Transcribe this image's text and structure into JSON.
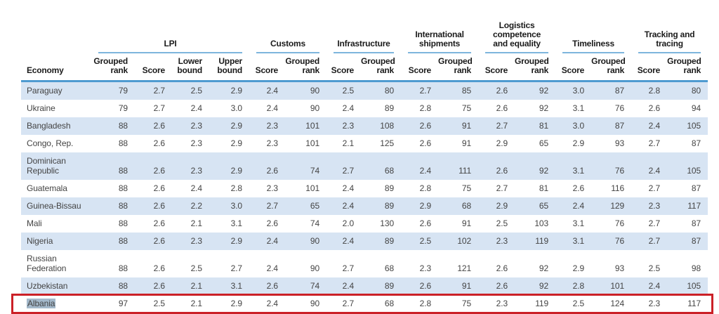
{
  "colors": {
    "page_background": "#ffffff",
    "row_shade": "#d7e4f3",
    "group_underline": "#7db5dd",
    "header_rule": "#4f9bd1",
    "highlight_border": "#cb2027",
    "selection_background": "#a4b9cb",
    "header_text": "#1a1a1a",
    "data_text": "#444444"
  },
  "table": {
    "economy_header": "Economy",
    "groups": [
      {
        "label": "LPI",
        "cols": 4
      },
      {
        "label": "Customs",
        "cols": 2
      },
      {
        "label": "Infrastructure",
        "cols": 2
      },
      {
        "label": "International shipments",
        "cols": 2
      },
      {
        "label": "Logistics competence and equality",
        "cols": 2
      },
      {
        "label": "Timeliness",
        "cols": 2
      },
      {
        "label": "Tracking and tracing",
        "cols": 2
      }
    ],
    "sub_headers": [
      "Grouped rank",
      "Score",
      "Lower bound",
      "Upper bound",
      "Score",
      "Grouped rank",
      "Score",
      "Grouped rank",
      "Score",
      "Grouped rank",
      "Score",
      "Grouped rank",
      "Score",
      "Grouped rank",
      "Score",
      "Grouped rank"
    ],
    "rows": [
      {
        "economy": "Paraguay",
        "shaded": true,
        "highlighted": false,
        "values": [
          "79",
          "2.7",
          "2.5",
          "2.9",
          "2.4",
          "90",
          "2.5",
          "80",
          "2.7",
          "85",
          "2.6",
          "92",
          "3.0",
          "87",
          "2.8",
          "80"
        ]
      },
      {
        "economy": "Ukraine",
        "shaded": false,
        "highlighted": false,
        "values": [
          "79",
          "2.7",
          "2.4",
          "3.0",
          "2.4",
          "90",
          "2.4",
          "89",
          "2.8",
          "75",
          "2.6",
          "92",
          "3.1",
          "76",
          "2.6",
          "94"
        ]
      },
      {
        "economy": "Bangladesh",
        "shaded": true,
        "highlighted": false,
        "values": [
          "88",
          "2.6",
          "2.3",
          "2.9",
          "2.3",
          "101",
          "2.3",
          "108",
          "2.6",
          "91",
          "2.7",
          "81",
          "3.0",
          "87",
          "2.4",
          "105"
        ]
      },
      {
        "economy": "Congo, Rep.",
        "shaded": false,
        "highlighted": false,
        "values": [
          "88",
          "2.6",
          "2.3",
          "2.9",
          "2.3",
          "101",
          "2.1",
          "125",
          "2.6",
          "91",
          "2.9",
          "65",
          "2.9",
          "93",
          "2.7",
          "87"
        ]
      },
      {
        "economy": "Dominican Republic",
        "shaded": true,
        "highlighted": false,
        "values": [
          "88",
          "2.6",
          "2.3",
          "2.9",
          "2.6",
          "74",
          "2.7",
          "68",
          "2.4",
          "111",
          "2.6",
          "92",
          "3.1",
          "76",
          "2.4",
          "105"
        ]
      },
      {
        "economy": "Guatemala",
        "shaded": false,
        "highlighted": false,
        "values": [
          "88",
          "2.6",
          "2.4",
          "2.8",
          "2.3",
          "101",
          "2.4",
          "89",
          "2.8",
          "75",
          "2.7",
          "81",
          "2.6",
          "116",
          "2.7",
          "87"
        ]
      },
      {
        "economy": "Guinea-Bissau",
        "shaded": true,
        "highlighted": false,
        "values": [
          "88",
          "2.6",
          "2.2",
          "3.0",
          "2.7",
          "65",
          "2.4",
          "89",
          "2.9",
          "68",
          "2.9",
          "65",
          "2.4",
          "129",
          "2.3",
          "117"
        ]
      },
      {
        "economy": "Mali",
        "shaded": false,
        "highlighted": false,
        "values": [
          "88",
          "2.6",
          "2.1",
          "3.1",
          "2.6",
          "74",
          "2.0",
          "130",
          "2.6",
          "91",
          "2.5",
          "103",
          "3.1",
          "76",
          "2.7",
          "87"
        ]
      },
      {
        "economy": "Nigeria",
        "shaded": true,
        "highlighted": false,
        "values": [
          "88",
          "2.6",
          "2.3",
          "2.9",
          "2.4",
          "90",
          "2.4",
          "89",
          "2.5",
          "102",
          "2.3",
          "119",
          "3.1",
          "76",
          "2.7",
          "87"
        ]
      },
      {
        "economy": "Russian Federation",
        "shaded": false,
        "highlighted": false,
        "values": [
          "88",
          "2.6",
          "2.5",
          "2.7",
          "2.4",
          "90",
          "2.7",
          "68",
          "2.3",
          "121",
          "2.6",
          "92",
          "2.9",
          "93",
          "2.5",
          "98"
        ]
      },
      {
        "economy": "Uzbekistan",
        "shaded": true,
        "highlighted": false,
        "values": [
          "88",
          "2.6",
          "2.1",
          "3.1",
          "2.6",
          "74",
          "2.4",
          "89",
          "2.6",
          "91",
          "2.6",
          "92",
          "2.8",
          "101",
          "2.4",
          "105"
        ]
      },
      {
        "economy": "Albania",
        "shaded": false,
        "highlighted": true,
        "values": [
          "97",
          "2.5",
          "2.1",
          "2.9",
          "2.4",
          "90",
          "2.7",
          "68",
          "2.8",
          "75",
          "2.3",
          "119",
          "2.5",
          "124",
          "2.3",
          "117"
        ]
      }
    ]
  }
}
